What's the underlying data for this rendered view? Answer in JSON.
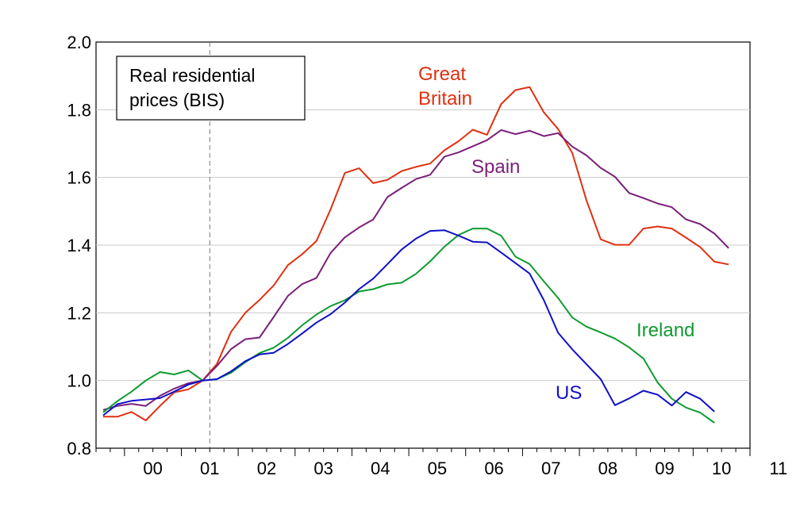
{
  "chart_data": {
    "type": "line",
    "annotation": [
      "Real residential",
      "prices (BIS)"
    ],
    "reference_line": {
      "x": 2001.5,
      "style": "dashed"
    },
    "xlim": [
      1999.5,
      2011.0
    ],
    "ylim": [
      0.8,
      2.0
    ],
    "yticks": [
      "0.8",
      "1.0",
      "1.2",
      "1.4",
      "1.6",
      "1.8",
      "2.0"
    ],
    "xticks": [
      {
        "label": "00",
        "x": 2000.0
      },
      {
        "label": "01",
        "x": 2001.0
      },
      {
        "label": "02",
        "x": 2002.0
      },
      {
        "label": "03",
        "x": 2003.0
      },
      {
        "label": "04",
        "x": 2004.0
      },
      {
        "label": "05",
        "x": 2005.0
      },
      {
        "label": "06",
        "x": 2006.0
      },
      {
        "label": "07",
        "x": 2007.0
      },
      {
        "label": "08",
        "x": 2008.0
      },
      {
        "label": "09",
        "x": 2009.0
      },
      {
        "label": "10",
        "x": 2010.0
      },
      {
        "label": "11",
        "x": 2011.0
      }
    ],
    "grid": true,
    "legend": "none",
    "series": [
      {
        "name": "Great Britain",
        "label_lines": [
          "Great",
          "Britain"
        ],
        "color": "#e03010",
        "x0": 1999.625,
        "step": 0.25,
        "values": [
          0.893,
          0.893,
          0.907,
          0.882,
          0.925,
          0.965,
          0.974,
          1.0,
          1.049,
          1.144,
          1.2,
          1.238,
          1.281,
          1.341,
          1.373,
          1.412,
          1.506,
          1.613,
          1.627,
          1.583,
          1.593,
          1.619,
          1.631,
          1.641,
          1.68,
          1.707,
          1.741,
          1.726,
          1.817,
          1.858,
          1.867,
          1.792,
          1.743,
          1.672,
          1.532,
          1.417,
          1.401,
          1.401,
          1.449,
          1.455,
          1.449,
          1.422,
          1.394,
          1.351,
          1.343
        ]
      },
      {
        "name": "Spain",
        "color": "#7a1f7a",
        "x0": 1999.625,
        "step": 0.25,
        "values": [
          0.913,
          0.925,
          0.931,
          0.925,
          0.955,
          0.976,
          0.992,
          1.0,
          1.043,
          1.093,
          1.122,
          1.127,
          1.188,
          1.25,
          1.285,
          1.303,
          1.377,
          1.423,
          1.452,
          1.476,
          1.542,
          1.569,
          1.595,
          1.608,
          1.661,
          1.674,
          1.692,
          1.71,
          1.74,
          1.728,
          1.738,
          1.722,
          1.731,
          1.691,
          1.665,
          1.628,
          1.602,
          1.554,
          1.539,
          1.523,
          1.512,
          1.476,
          1.462,
          1.434,
          1.391
        ]
      },
      {
        "name": "Ireland",
        "color": "#109a30",
        "x0": 1999.625,
        "step": 0.25,
        "values": [
          0.906,
          0.939,
          0.967,
          1.0,
          1.025,
          1.018,
          1.03,
          1.0,
          1.004,
          1.023,
          1.054,
          1.081,
          1.097,
          1.126,
          1.163,
          1.195,
          1.22,
          1.237,
          1.263,
          1.27,
          1.284,
          1.289,
          1.315,
          1.352,
          1.395,
          1.43,
          1.449,
          1.449,
          1.428,
          1.366,
          1.344,
          1.293,
          1.244,
          1.186,
          1.159,
          1.142,
          1.124,
          1.098,
          1.065,
          0.994,
          0.946,
          0.92,
          0.905,
          0.875
        ]
      },
      {
        "name": "US",
        "color": "#1010c8",
        "x0": 1999.625,
        "step": 0.25,
        "values": [
          0.897,
          0.93,
          0.94,
          0.944,
          0.948,
          0.967,
          0.988,
          1.0,
          1.004,
          1.027,
          1.057,
          1.077,
          1.082,
          1.108,
          1.139,
          1.171,
          1.196,
          1.23,
          1.27,
          1.301,
          1.344,
          1.387,
          1.419,
          1.442,
          1.444,
          1.428,
          1.41,
          1.408,
          1.378,
          1.347,
          1.316,
          1.237,
          1.141,
          1.092,
          1.048,
          1.004,
          0.927,
          0.947,
          0.97,
          0.958,
          0.926,
          0.966,
          0.946,
          0.908
        ]
      }
    ]
  }
}
